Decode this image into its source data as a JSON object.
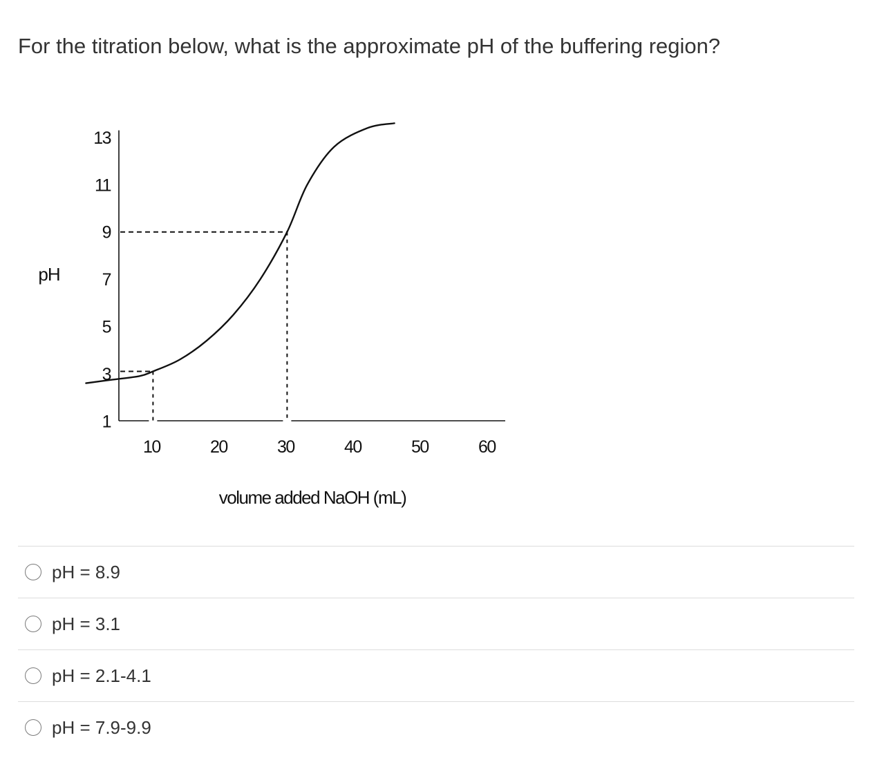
{
  "question": {
    "text": "For the titration below, what is the approximate pH of the buffering region?"
  },
  "chart_data": {
    "type": "line",
    "xlabel": "volume added NaOH (mL)",
    "ylabel": "pH",
    "x_ticks": [
      10,
      20,
      30,
      40,
      50,
      60
    ],
    "y_ticks": [
      1,
      3,
      5,
      7,
      9,
      11,
      13
    ],
    "xlim": [
      0,
      60
    ],
    "ylim": [
      0,
      13.5
    ],
    "grid": false,
    "series": [
      {
        "points": [
          {
            "x": 0,
            "y": 2.6
          },
          {
            "x": 4,
            "y": 2.75
          },
          {
            "x": 8,
            "y": 2.9
          },
          {
            "x": 10,
            "y": 3.1
          },
          {
            "x": 14,
            "y": 3.6
          },
          {
            "x": 18,
            "y": 4.4
          },
          {
            "x": 22,
            "y": 5.5
          },
          {
            "x": 26,
            "y": 7.0
          },
          {
            "x": 30,
            "y": 9.0
          },
          {
            "x": 33,
            "y": 11.0
          },
          {
            "x": 37,
            "y": 12.6
          },
          {
            "x": 42,
            "y": 13.4
          },
          {
            "x": 46,
            "y": 13.6
          }
        ]
      }
    ],
    "reference_lines": [
      {
        "x": 10,
        "y": 3.1
      },
      {
        "x": 30,
        "y": 9.0
      }
    ]
  },
  "options": [
    {
      "label": "pH = 8.9"
    },
    {
      "label": "pH = 3.1"
    },
    {
      "label": "pH = 2.1-4.1"
    },
    {
      "label": "pH = 7.9-9.9"
    }
  ]
}
